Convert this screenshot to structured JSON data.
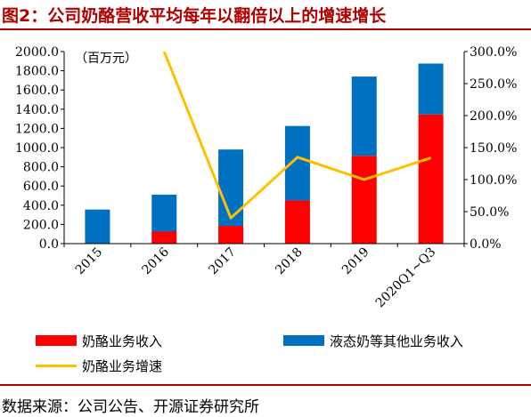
{
  "title": "图2：公司奶酪营收平均每年以翻倍以上的增速增长",
  "source": "数据来源：公司公告、开源证券研究所",
  "unit_label": "（百万元）",
  "colors": {
    "cheese": "#ff0000",
    "liquid": "#0070c0",
    "growth": "#ffc000",
    "accent": "#b00000"
  },
  "legend": {
    "cheese_revenue": "奶酪业务收入",
    "liquid_revenue": "液态奶等其他业务收入",
    "cheese_growth": "奶酪业务增速"
  },
  "chart_data": {
    "type": "bar",
    "stacked": true,
    "categories": [
      "2015",
      "2016",
      "2017",
      "2018",
      "2019",
      "2020Q1~Q3"
    ],
    "series": [
      {
        "name": "奶酪业务收入",
        "type": "bar",
        "axis": "left",
        "values": [
          0,
          125,
          185,
          450,
          915,
          1345
        ]
      },
      {
        "name": "液态奶等其他业务收入",
        "type": "bar",
        "axis": "left",
        "values": [
          355,
          385,
          795,
          775,
          825,
          530
        ]
      },
      {
        "name": "奶酪业务增速",
        "type": "line",
        "axis": "right",
        "values": [
          null,
          300.0,
          40.0,
          135.0,
          100.0,
          134.0
        ]
      }
    ],
    "ylim": [
      0,
      2000
    ],
    "y_ticks": [
      "0.0",
      "200.0",
      "400.0",
      "600.0",
      "800.0",
      "1000.0",
      "1200.0",
      "1400.0",
      "1600.0",
      "1800.0",
      "2000.0"
    ],
    "y2lim": [
      0,
      300
    ],
    "y2_ticks": [
      "0.0%",
      "50.0%",
      "100.0%",
      "150.0%",
      "200.0%",
      "250.0%",
      "300.0%"
    ],
    "grid": false,
    "legend_position": "bottom"
  }
}
